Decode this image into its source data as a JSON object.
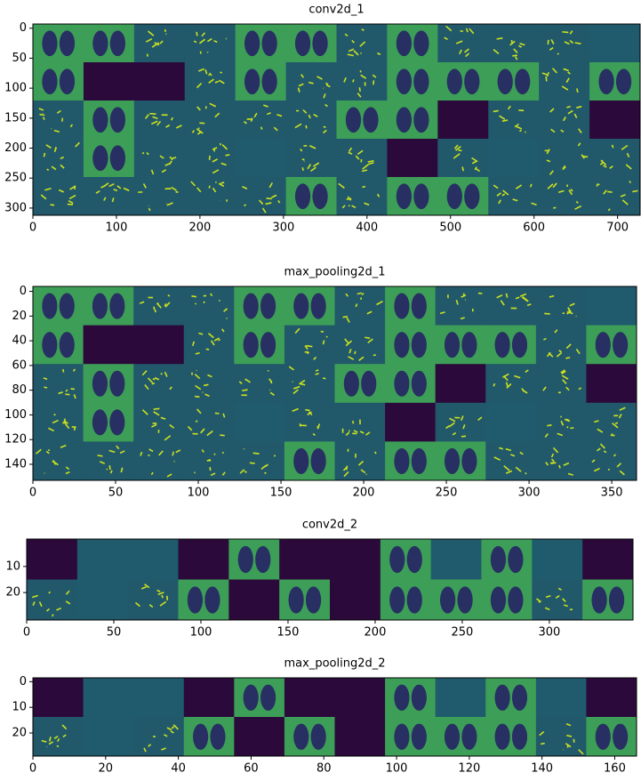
{
  "chart_data": [
    {
      "type": "image",
      "title": "conv2d_1",
      "xlim": [
        0,
        727
      ],
      "ylim": [
        312,
        -7
      ],
      "xticks": [
        0,
        100,
        200,
        300,
        400,
        500,
        600,
        700
      ],
      "yticks": [
        0,
        50,
        100,
        150,
        200,
        250,
        300
      ]
    },
    {
      "type": "image",
      "title": "max_pooling2d_1",
      "xlim": [
        0,
        365
      ],
      "ylim": [
        153,
        -4
      ],
      "xticks": [
        0,
        50,
        100,
        150,
        200,
        250,
        300,
        350
      ],
      "yticks": [
        0,
        20,
        40,
        60,
        80,
        100,
        120,
        140
      ]
    },
    {
      "type": "image",
      "title": "conv2d_2",
      "xlim": [
        0,
        348
      ],
      "ylim": [
        30.5,
        -0.5
      ],
      "xticks": [
        0,
        50,
        100,
        150,
        200,
        250,
        300
      ],
      "yticks": [
        10,
        20
      ]
    },
    {
      "type": "image",
      "title": "max_pooling2d_2",
      "xlim": [
        0,
        166
      ],
      "ylim": [
        29,
        -1.5
      ],
      "xticks": [
        0,
        20,
        40,
        60,
        80,
        100,
        120,
        140,
        160
      ],
      "yticks": [
        0,
        10,
        20
      ]
    }
  ]
}
